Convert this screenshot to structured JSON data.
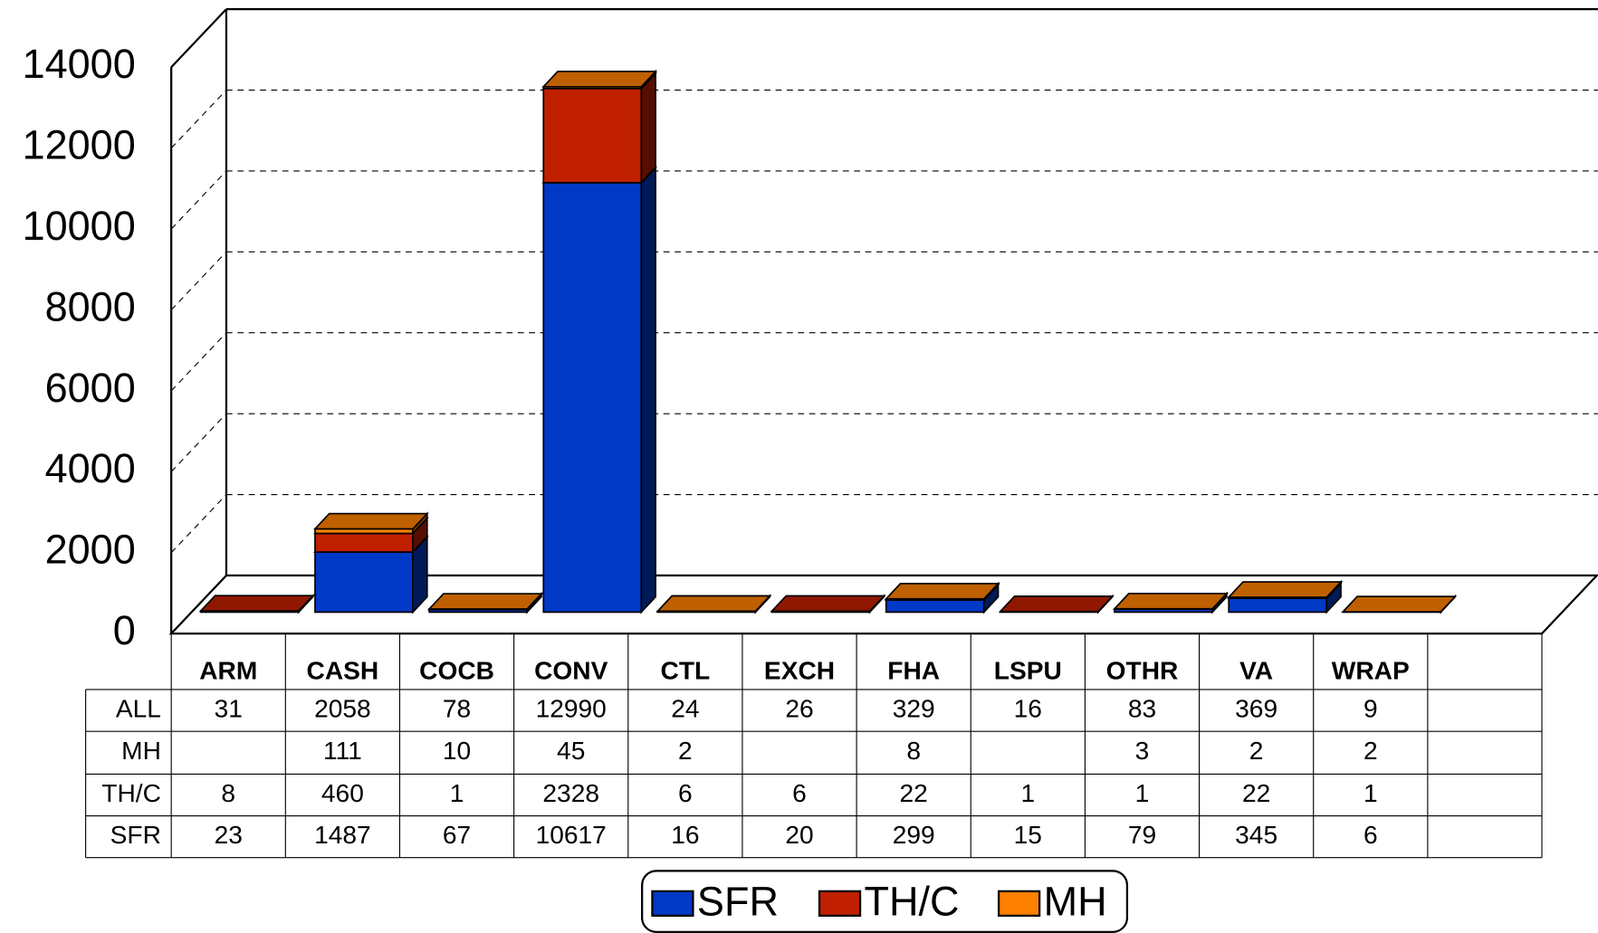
{
  "chart_data": {
    "type": "bar",
    "stacked": true,
    "categories": [
      "ARM",
      "CASH",
      "COCB",
      "CONV",
      "CTL",
      "EXCH",
      "FHA",
      "LSPU",
      "OTHR",
      "VA",
      "WRAP"
    ],
    "series": [
      {
        "name": "SFR",
        "color": "#0039c6",
        "values": [
          23,
          1487,
          67,
          10617,
          16,
          20,
          299,
          15,
          79,
          345,
          6
        ]
      },
      {
        "name": "TH/C",
        "color": "#c02000",
        "values": [
          8,
          460,
          1,
          2328,
          6,
          6,
          22,
          1,
          1,
          22,
          1
        ]
      },
      {
        "name": "MH",
        "color": "#ff8000",
        "values": [
          null,
          111,
          10,
          45,
          2,
          null,
          8,
          null,
          3,
          2,
          2
        ]
      }
    ],
    "totals": {
      "name": "ALL",
      "values": [
        31,
        2058,
        78,
        12990,
        24,
        26,
        329,
        16,
        83,
        369,
        9
      ]
    },
    "ylim": [
      0,
      14000
    ],
    "yticks": [
      0,
      2000,
      4000,
      6000,
      8000,
      10000,
      12000,
      14000
    ],
    "grid": true
  }
}
